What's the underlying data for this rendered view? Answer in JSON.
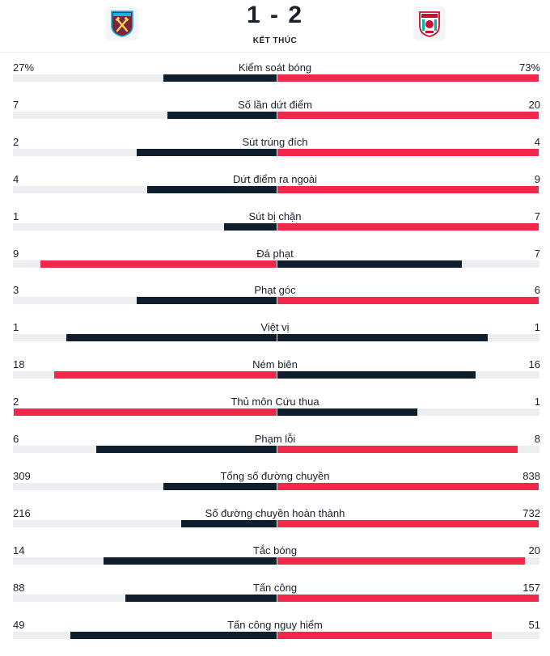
{
  "match": {
    "score": "1 - 2",
    "status": "KẾT THÚC",
    "home_team": {
      "crest_icon": "west-ham-crest-icon",
      "colors": [
        "#7a263a",
        "#1bb1e7",
        "#f3d459"
      ]
    },
    "away_team": {
      "crest_icon": "liverpool-crest-icon",
      "colors": [
        "#c8102e",
        "#00b2a9",
        "#f6eb61"
      ]
    }
  },
  "colors": {
    "dark_bar": "#0f1e2d",
    "red_bar": "#f2284a",
    "track": "#eceef2"
  },
  "stats": [
    {
      "label": "Kiểm soát bóng",
      "home": "27%",
      "away": "73%",
      "home_value": 27,
      "away_value": 73,
      "home_color": "dark",
      "away_color": "red"
    },
    {
      "label": "Số lần dứt điểm",
      "home": "7",
      "away": "20",
      "home_value": 7,
      "away_value": 20,
      "home_color": "dark",
      "away_color": "red"
    },
    {
      "label": "Sút trúng đích",
      "home": "2",
      "away": "4",
      "home_value": 2,
      "away_value": 4,
      "home_color": "dark",
      "away_color": "red"
    },
    {
      "label": "Dứt điểm ra ngoài",
      "home": "4",
      "away": "9",
      "home_value": 4,
      "away_value": 9,
      "home_color": "dark",
      "away_color": "red"
    },
    {
      "label": "Sút bị chặn",
      "home": "1",
      "away": "7",
      "home_value": 1,
      "away_value": 7,
      "home_color": "dark",
      "away_color": "red"
    },
    {
      "label": "Đá phạt",
      "home": "9",
      "away": "7",
      "home_value": 9,
      "away_value": 7,
      "home_color": "red",
      "away_color": "dark"
    },
    {
      "label": "Phạt góc",
      "home": "3",
      "away": "6",
      "home_value": 3,
      "away_value": 6,
      "home_color": "dark",
      "away_color": "red"
    },
    {
      "label": "Việt vị",
      "home": "1",
      "away": "1",
      "home_value": 1,
      "away_value": 1,
      "home_color": "dark",
      "away_color": "dark"
    },
    {
      "label": "Ném biên",
      "home": "18",
      "away": "16",
      "home_value": 18,
      "away_value": 16,
      "home_color": "red",
      "away_color": "dark"
    },
    {
      "label": "Thủ môn Cứu thua",
      "home": "2",
      "away": "1",
      "home_value": 2,
      "away_value": 1,
      "home_color": "red",
      "away_color": "dark"
    },
    {
      "label": "Phạm lỗi",
      "home": "6",
      "away": "8",
      "home_value": 6,
      "away_value": 8,
      "home_color": "dark",
      "away_color": "red"
    },
    {
      "label": "Tổng số đường chuyền",
      "home": "309",
      "away": "838",
      "home_value": 309,
      "away_value": 838,
      "home_color": "dark",
      "away_color": "red"
    },
    {
      "label": "Số đường chuyền hoàn thành",
      "home": "216",
      "away": "732",
      "home_value": 216,
      "away_value": 732,
      "home_color": "dark",
      "away_color": "red"
    },
    {
      "label": "Tắc bóng",
      "home": "14",
      "away": "20",
      "home_value": 14,
      "away_value": 20,
      "home_color": "dark",
      "away_color": "red"
    },
    {
      "label": "Tấn công",
      "home": "88",
      "away": "157",
      "home_value": 88,
      "away_value": 157,
      "home_color": "dark",
      "away_color": "red"
    },
    {
      "label": "Tấn công nguy hiểm",
      "home": "49",
      "away": "51",
      "home_value": 49,
      "away_value": 51,
      "home_color": "dark",
      "away_color": "red"
    }
  ]
}
